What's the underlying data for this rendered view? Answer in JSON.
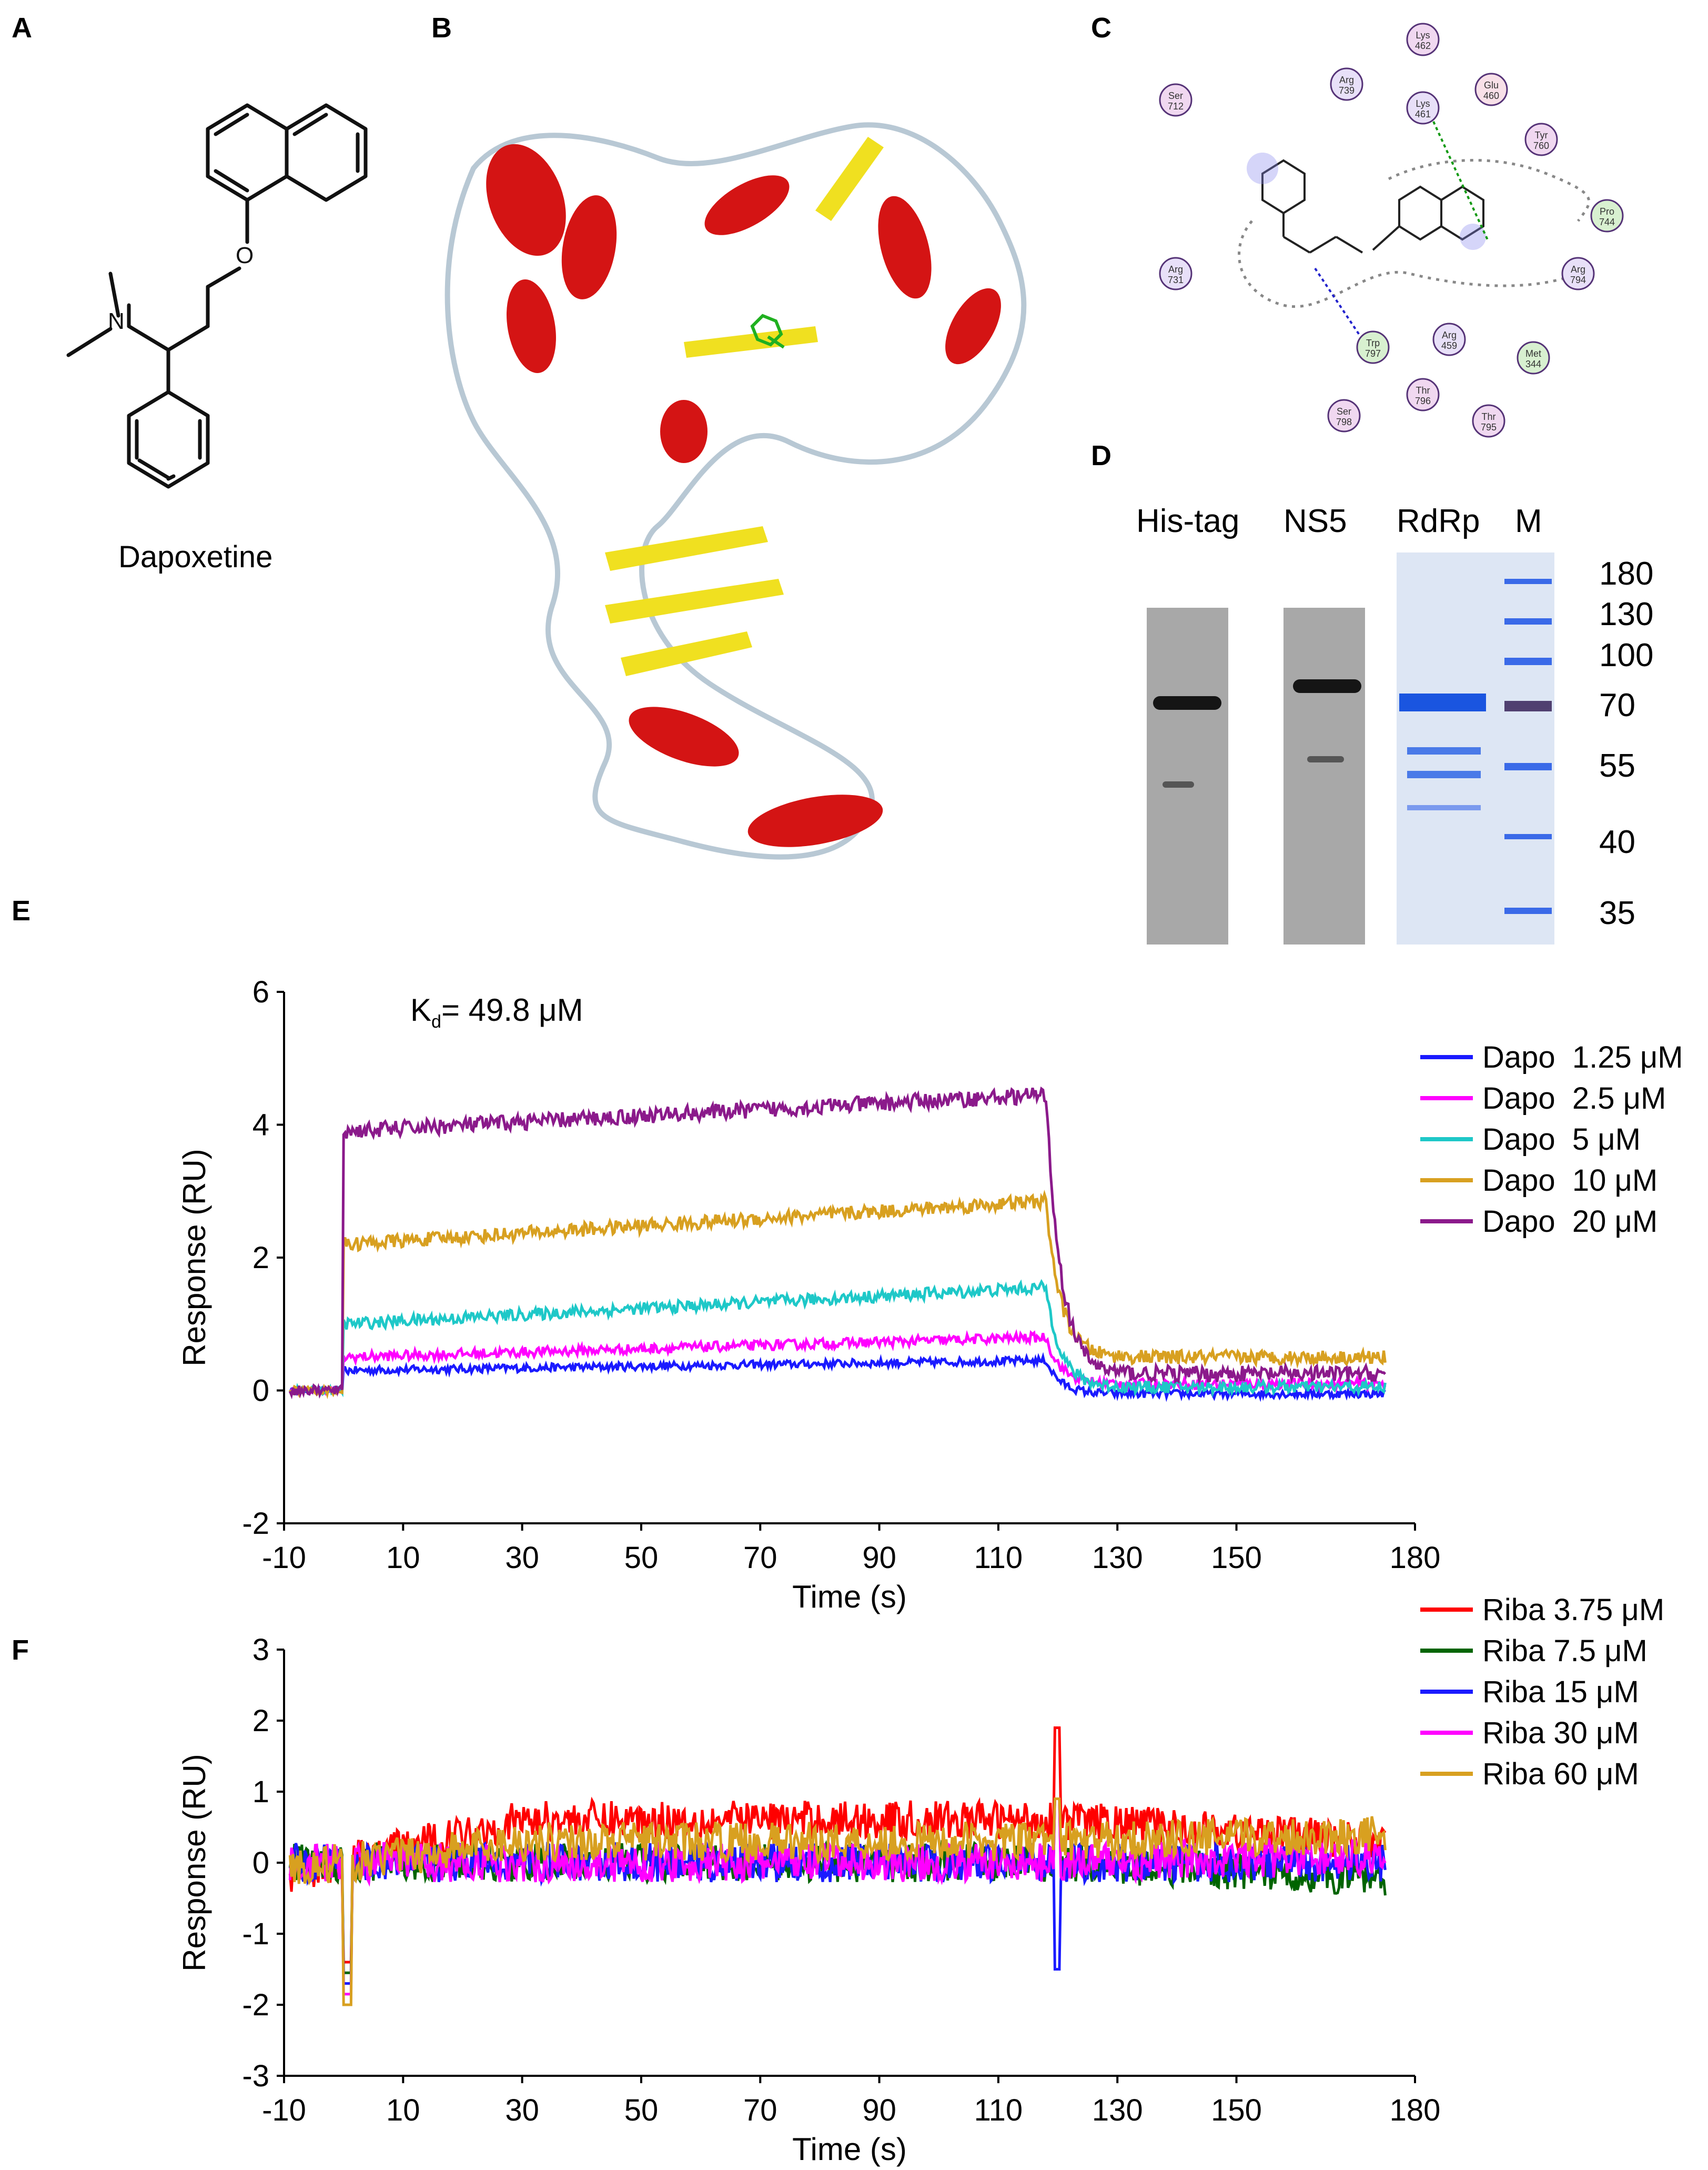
{
  "panels": {
    "A": "A",
    "B": "B",
    "C": "C",
    "D": "D",
    "E": "E",
    "F": "F"
  },
  "panelA": {
    "compound_name": "Dapoxetine",
    "atom_N": "N",
    "atom_O": "O"
  },
  "panelC": {
    "residues": [
      {
        "name": "Lys",
        "num": "462"
      },
      {
        "name": "Ser",
        "num": "712"
      },
      {
        "name": "Arg",
        "num": "739"
      },
      {
        "name": "Glu",
        "num": "460"
      },
      {
        "name": "Lys",
        "num": "461"
      },
      {
        "name": "Tyr",
        "num": "760"
      },
      {
        "name": "Pro",
        "num": "744"
      },
      {
        "name": "Arg",
        "num": "731"
      },
      {
        "name": "Arg",
        "num": "794"
      },
      {
        "name": "Trp",
        "num": "797"
      },
      {
        "name": "Arg",
        "num": "459"
      },
      {
        "name": "Met",
        "num": "344"
      },
      {
        "name": "Thr",
        "num": "796"
      },
      {
        "name": "Ser",
        "num": "798"
      },
      {
        "name": "Thr",
        "num": "795"
      }
    ]
  },
  "panelD": {
    "lanes": [
      "His-tag",
      "NS5",
      "RdRp",
      "M"
    ],
    "marker_kda": [
      "180",
      "130",
      "100",
      "70",
      "55",
      "40",
      "35"
    ]
  },
  "chart_data": [
    {
      "type": "line",
      "panel": "E",
      "title": "",
      "annotation_main": "K",
      "annotation_sub": "d",
      "annotation_value": "= 49.8 μM",
      "xlabel": "Time (s)",
      "ylabel": "Response (RU)",
      "xlim": [
        -10,
        180
      ],
      "ylim": [
        -2,
        6
      ],
      "xticks": [
        "-10",
        "10",
        "30",
        "50",
        "70",
        "90",
        "110",
        "130",
        "150",
        "180"
      ],
      "xtick_values": [
        -10,
        10,
        30,
        50,
        70,
        90,
        110,
        130,
        150,
        180
      ],
      "yticks": [
        "-2",
        "0",
        "2",
        "4",
        "6"
      ],
      "ytick_values": [
        -2,
        0,
        2,
        4,
        6
      ],
      "injection_start": 0,
      "injection_end": 120,
      "series": [
        {
          "name": "Dapo  1.25 μM",
          "color": "#1a1aff",
          "plateau_start": 0.3,
          "plateau_end": 0.45,
          "dissoc": -0.05
        },
        {
          "name": "Dapo  2.5 μM",
          "color": "#ff00ff",
          "plateau_start": 0.5,
          "plateau_end": 0.8,
          "dissoc": 0.1
        },
        {
          "name": "Dapo  5 μM",
          "color": "#1ec8c8",
          "plateau_start": 1.0,
          "plateau_end": 1.55,
          "dissoc": 0.05
        },
        {
          "name": "Dapo  10 μM",
          "color": "#d8a020",
          "plateau_start": 2.2,
          "plateau_end": 2.85,
          "dissoc": 0.5
        },
        {
          "name": "Dapo  20 μM",
          "color": "#8b1a8b",
          "plateau_start": 3.9,
          "plateau_end": 4.45,
          "dissoc": 0.25
        }
      ]
    },
    {
      "type": "line",
      "panel": "F",
      "title": "",
      "xlabel": "Time (s)",
      "ylabel": "Response (RU)",
      "xlim": [
        -10,
        180
      ],
      "ylim": [
        -3,
        3
      ],
      "xticks": [
        "-10",
        "10",
        "30",
        "50",
        "70",
        "90",
        "110",
        "130",
        "150",
        "180"
      ],
      "xtick_values": [
        -10,
        10,
        30,
        50,
        70,
        90,
        110,
        130,
        150,
        180
      ],
      "yticks": [
        "-3",
        "-2",
        "-1",
        "0",
        "1",
        "2",
        "3"
      ],
      "ytick_values": [
        -3,
        -2,
        -1,
        0,
        1,
        2,
        3
      ],
      "series": [
        {
          "name": "Riba 3.75 μM",
          "color": "#ff0000",
          "level_mid": 0.6,
          "level_end": 0.3
        },
        {
          "name": "Riba 7.5 μM",
          "color": "#006400",
          "level_mid": 0.0,
          "level_end": -0.2
        },
        {
          "name": "Riba 15 μM",
          "color": "#1a1aff",
          "level_mid": 0.0,
          "level_end": 0.0
        },
        {
          "name": "Riba 30 μM",
          "color": "#ff00ff",
          "level_mid": 0.0,
          "level_end": 0.1
        },
        {
          "name": "Riba 60 μM",
          "color": "#d8a020",
          "level_mid": 0.3,
          "level_end": 0.4
        }
      ]
    }
  ]
}
